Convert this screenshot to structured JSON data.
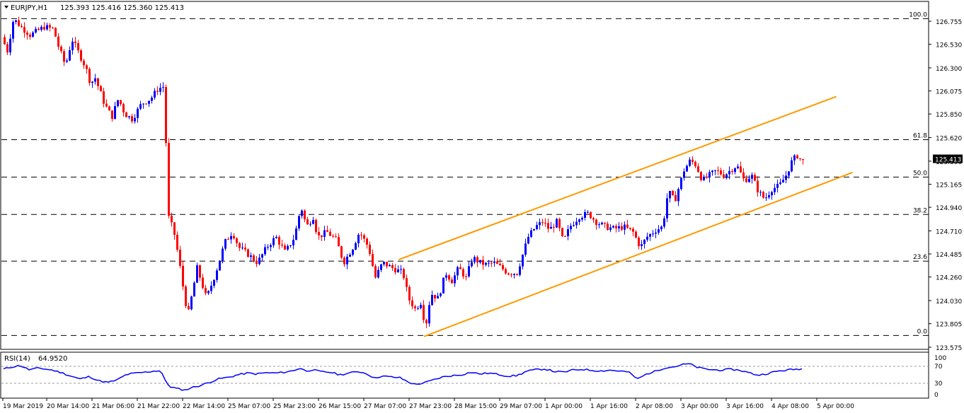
{
  "header": {
    "symbol_label": "EURJPY,H1",
    "ohlc_values": "125.393 125.416 125.360 125.413"
  },
  "colors": {
    "up_candle": "#0000ff",
    "down_candle": "#ff0000",
    "channel": "#ff9900",
    "rsi_line": "#0000ff",
    "fib_level": "#000000",
    "price_badge": "#000000"
  },
  "chart_data": {
    "type": "candlestick",
    "symbol": "EURJPY",
    "timeframe": "H1",
    "ylim": [
      123.575,
      126.955
    ],
    "y_ticks": [
      "126.755",
      "126.530",
      "126.300",
      "126.075",
      "125.850",
      "125.620",
      "125.390",
      "125.165",
      "124.940",
      "124.710",
      "124.485",
      "124.260",
      "124.030",
      "123.805",
      "123.575"
    ],
    "y_tick_values": [
      126.755,
      126.53,
      126.3,
      126.075,
      125.85,
      125.62,
      125.39,
      125.165,
      124.94,
      124.71,
      124.485,
      124.26,
      124.03,
      123.805,
      123.575
    ],
    "x_ticks": [
      "19 Mar 2019",
      "20 Mar 14:00",
      "21 Mar 06:00",
      "21 Mar 22:00",
      "22 Mar 14:00",
      "25 Mar 07:00",
      "25 Mar 23:00",
      "26 Mar 15:00",
      "27 Mar 07:00",
      "27 Mar 23:00",
      "28 Mar 15:00",
      "29 Mar 07:00",
      "1 Apr 00:00",
      "1 Apr 16:00",
      "2 Apr 08:00",
      "3 Apr 00:00",
      "3 Apr 16:00",
      "4 Apr 08:00",
      "5 Apr 00:00"
    ],
    "current_price": "125.413",
    "current_price_value": 125.413,
    "fib_levels": [
      {
        "label": "100.0",
        "value": 126.78
      },
      {
        "label": "61.8",
        "value": 125.6
      },
      {
        "label": "50.0",
        "value": 125.235
      },
      {
        "label": "38.2",
        "value": 124.87
      },
      {
        "label": "23.6",
        "value": 124.415
      },
      {
        "label": "0.0",
        "value": 123.69
      }
    ],
    "channel_lines": [
      {
        "name": "upper",
        "points": [
          [
            0.4286,
            124.43
          ],
          [
            0.9004,
            126.02
          ]
        ]
      },
      {
        "name": "lower",
        "points": [
          [
            0.4558,
            123.68
          ],
          [
            0.9179,
            125.28
          ]
        ]
      }
    ],
    "anchors": [
      [
        0.0,
        126.6
      ],
      [
        0.005,
        126.45
      ],
      [
        0.012,
        126.78
      ],
      [
        0.02,
        126.7
      ],
      [
        0.03,
        126.62
      ],
      [
        0.045,
        126.7
      ],
      [
        0.055,
        126.68
      ],
      [
        0.06,
        126.52
      ],
      [
        0.068,
        126.32
      ],
      [
        0.075,
        126.58
      ],
      [
        0.082,
        126.45
      ],
      [
        0.09,
        126.3
      ],
      [
        0.095,
        126.15
      ],
      [
        0.1,
        126.2
      ],
      [
        0.11,
        125.95
      ],
      [
        0.118,
        125.82
      ],
      [
        0.125,
        126.0
      ],
      [
        0.132,
        125.85
      ],
      [
        0.14,
        125.8
      ],
      [
        0.15,
        125.95
      ],
      [
        0.16,
        126.0
      ],
      [
        0.168,
        126.1
      ],
      [
        0.175,
        126.12
      ],
      [
        0.177,
        125.3
      ],
      [
        0.179,
        124.85
      ],
      [
        0.185,
        124.7
      ],
      [
        0.19,
        124.45
      ],
      [
        0.195,
        124.15
      ],
      [
        0.2,
        123.88
      ],
      [
        0.21,
        124.35
      ],
      [
        0.22,
        124.05
      ],
      [
        0.23,
        124.3
      ],
      [
        0.24,
        124.6
      ],
      [
        0.248,
        124.7
      ],
      [
        0.255,
        124.55
      ],
      [
        0.265,
        124.48
      ],
      [
        0.275,
        124.4
      ],
      [
        0.285,
        124.55
      ],
      [
        0.295,
        124.65
      ],
      [
        0.305,
        124.5
      ],
      [
        0.315,
        124.65
      ],
      [
        0.322,
        124.95
      ],
      [
        0.328,
        124.75
      ],
      [
        0.335,
        124.85
      ],
      [
        0.34,
        124.65
      ],
      [
        0.35,
        124.7
      ],
      [
        0.36,
        124.62
      ],
      [
        0.368,
        124.4
      ],
      [
        0.378,
        124.55
      ],
      [
        0.385,
        124.7
      ],
      [
        0.395,
        124.55
      ],
      [
        0.402,
        124.25
      ],
      [
        0.41,
        124.4
      ],
      [
        0.42,
        124.35
      ],
      [
        0.432,
        124.3
      ],
      [
        0.438,
        124.05
      ],
      [
        0.445,
        123.95
      ],
      [
        0.452,
        124.02
      ],
      [
        0.456,
        123.75
      ],
      [
        0.462,
        124.1
      ],
      [
        0.47,
        124.05
      ],
      [
        0.478,
        124.3
      ],
      [
        0.485,
        124.22
      ],
      [
        0.492,
        124.35
      ],
      [
        0.5,
        124.25
      ],
      [
        0.507,
        124.45
      ],
      [
        0.515,
        124.4
      ],
      [
        0.522,
        124.38
      ],
      [
        0.53,
        124.4
      ],
      [
        0.538,
        124.35
      ],
      [
        0.545,
        124.3
      ],
      [
        0.555,
        124.3
      ],
      [
        0.567,
        124.65
      ],
      [
        0.575,
        124.75
      ],
      [
        0.583,
        124.8
      ],
      [
        0.59,
        124.72
      ],
      [
        0.598,
        124.8
      ],
      [
        0.605,
        124.6
      ],
      [
        0.612,
        124.75
      ],
      [
        0.622,
        124.85
      ],
      [
        0.632,
        124.88
      ],
      [
        0.64,
        124.8
      ],
      [
        0.65,
        124.75
      ],
      [
        0.66,
        124.73
      ],
      [
        0.67,
        124.75
      ],
      [
        0.68,
        124.7
      ],
      [
        0.688,
        124.55
      ],
      [
        0.695,
        124.65
      ],
      [
        0.705,
        124.72
      ],
      [
        0.712,
        124.75
      ],
      [
        0.718,
        125.1
      ],
      [
        0.725,
        125.0
      ],
      [
        0.735,
        125.3
      ],
      [
        0.742,
        125.4
      ],
      [
        0.748,
        125.35
      ],
      [
        0.755,
        125.2
      ],
      [
        0.762,
        125.25
      ],
      [
        0.77,
        125.3
      ],
      [
        0.778,
        125.25
      ],
      [
        0.785,
        125.3
      ],
      [
        0.792,
        125.35
      ],
      [
        0.8,
        125.2
      ],
      [
        0.808,
        125.25
      ],
      [
        0.815,
        125.1
      ],
      [
        0.822,
        125.02
      ],
      [
        0.83,
        125.12
      ],
      [
        0.838,
        125.15
      ],
      [
        0.845,
        125.25
      ],
      [
        0.852,
        125.4
      ],
      [
        0.858,
        125.45
      ],
      [
        0.862,
        125.38
      ],
      [
        0.866,
        125.41
      ]
    ],
    "rsi": {
      "label": "RSI(14)",
      "value": "64.9520",
      "ylim": [
        0,
        100
      ],
      "y_ticks": [
        "100",
        "70",
        "30",
        "0"
      ],
      "y_tick_values": [
        100,
        70,
        30,
        0
      ],
      "levels": [
        70,
        30
      ],
      "anchors": [
        [
          0.0,
          62
        ],
        [
          0.01,
          68
        ],
        [
          0.02,
          72
        ],
        [
          0.03,
          62
        ],
        [
          0.04,
          66
        ],
        [
          0.055,
          61
        ],
        [
          0.065,
          55
        ],
        [
          0.075,
          47
        ],
        [
          0.085,
          40
        ],
        [
          0.095,
          46
        ],
        [
          0.105,
          36
        ],
        [
          0.115,
          32
        ],
        [
          0.125,
          38
        ],
        [
          0.135,
          51
        ],
        [
          0.145,
          54
        ],
        [
          0.155,
          56
        ],
        [
          0.165,
          59
        ],
        [
          0.172,
          60
        ],
        [
          0.177,
          34
        ],
        [
          0.182,
          22
        ],
        [
          0.19,
          17
        ],
        [
          0.198,
          14
        ],
        [
          0.205,
          20
        ],
        [
          0.215,
          25
        ],
        [
          0.225,
          33
        ],
        [
          0.235,
          41
        ],
        [
          0.245,
          44
        ],
        [
          0.255,
          50
        ],
        [
          0.265,
          54
        ],
        [
          0.275,
          52
        ],
        [
          0.285,
          55
        ],
        [
          0.295,
          54
        ],
        [
          0.305,
          56
        ],
        [
          0.315,
          60
        ],
        [
          0.322,
          66
        ],
        [
          0.328,
          59
        ],
        [
          0.335,
          62
        ],
        [
          0.345,
          57
        ],
        [
          0.355,
          56
        ],
        [
          0.365,
          50
        ],
        [
          0.375,
          54
        ],
        [
          0.385,
          58
        ],
        [
          0.395,
          52
        ],
        [
          0.402,
          42
        ],
        [
          0.41,
          47
        ],
        [
          0.42,
          45
        ],
        [
          0.43,
          43
        ],
        [
          0.438,
          34
        ],
        [
          0.446,
          27
        ],
        [
          0.456,
          31
        ],
        [
          0.466,
          38
        ],
        [
          0.476,
          45
        ],
        [
          0.486,
          48
        ],
        [
          0.496,
          50
        ],
        [
          0.506,
          56
        ],
        [
          0.516,
          52
        ],
        [
          0.526,
          54
        ],
        [
          0.536,
          51
        ],
        [
          0.546,
          47
        ],
        [
          0.556,
          48
        ],
        [
          0.566,
          58
        ],
        [
          0.576,
          62
        ],
        [
          0.586,
          64
        ],
        [
          0.596,
          58
        ],
        [
          0.606,
          56
        ],
        [
          0.616,
          61
        ],
        [
          0.626,
          63
        ],
        [
          0.636,
          61
        ],
        [
          0.646,
          59
        ],
        [
          0.656,
          61
        ],
        [
          0.666,
          59
        ],
        [
          0.676,
          57
        ],
        [
          0.686,
          40
        ],
        [
          0.696,
          52
        ],
        [
          0.706,
          59
        ],
        [
          0.716,
          67
        ],
        [
          0.726,
          69
        ],
        [
          0.734,
          74
        ],
        [
          0.742,
          76
        ],
        [
          0.75,
          68
        ],
        [
          0.758,
          64
        ],
        [
          0.766,
          62
        ],
        [
          0.776,
          61
        ],
        [
          0.786,
          63
        ],
        [
          0.796,
          61
        ],
        [
          0.806,
          55
        ],
        [
          0.816,
          49
        ],
        [
          0.826,
          53
        ],
        [
          0.836,
          58
        ],
        [
          0.846,
          61
        ],
        [
          0.856,
          63
        ],
        [
          0.866,
          65
        ]
      ]
    }
  }
}
